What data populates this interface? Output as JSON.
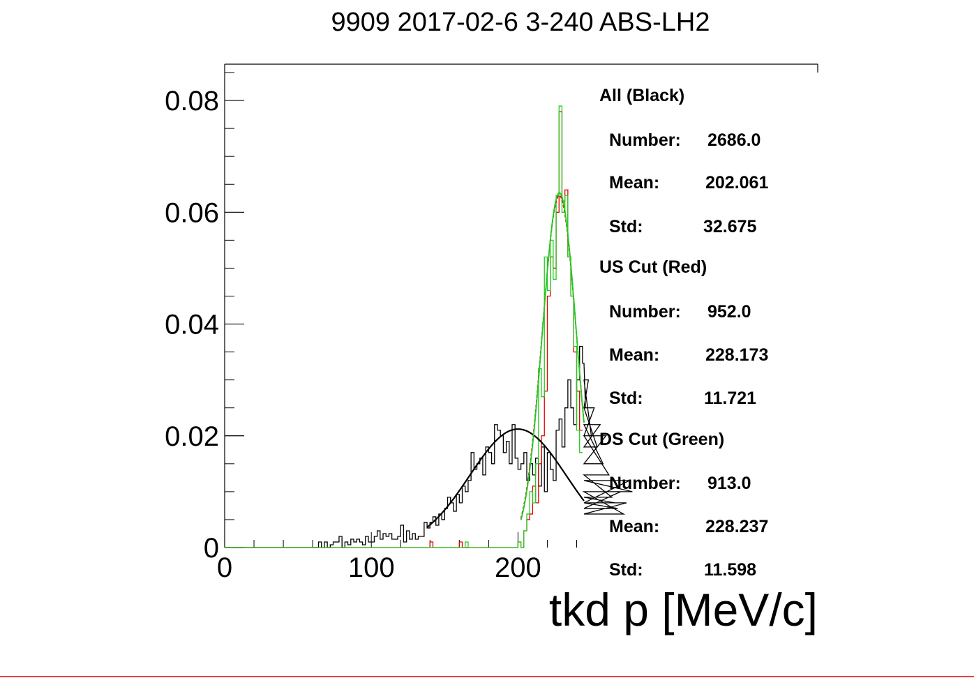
{
  "chart_data": {
    "type": "histogram",
    "title": "9909 2017-02-6 3-240 ABS-LH2",
    "xlabel": "tkd p [MeV/c]",
    "ylabel": "",
    "xlim": [
      0,
      245
    ],
    "ylim": [
      0,
      0.0865
    ],
    "x_ticks": [
      "0",
      "100",
      "200"
    ],
    "x_tick_values": [
      0,
      100,
      200
    ],
    "y_ticks": [
      "0",
      "0.02",
      "0.04",
      "0.06",
      "0.08"
    ],
    "y_tick_values": [
      0,
      0.02,
      0.04,
      0.06,
      0.08
    ],
    "bin_width": 2,
    "grid": false,
    "colors": {
      "all": "#000000",
      "us": "#e00000",
      "ds": "#22cc22",
      "frame": "#000000",
      "bottom_line": "#e00000"
    },
    "series": [
      {
        "key": "all",
        "x_start": 64,
        "values": [
          0.001,
          0,
          0.001,
          0,
          0.0005,
          0.001,
          0.001,
          0.002,
          0,
          0.001,
          0.0005,
          0.0015,
          0.001,
          0.0015,
          0.001,
          0.0005,
          0.002,
          0.001,
          0.001,
          0.002,
          0.003,
          0.0015,
          0.0025,
          0.002,
          0.0025,
          0.0015,
          0.0015,
          0.002,
          0.004,
          0.001,
          0.003,
          0.0015,
          0.0025,
          0.0015,
          0.002,
          0.002,
          0.0045,
          0.0035,
          0.0045,
          0.0055,
          0.004,
          0.006,
          0.005,
          0.007,
          0.009,
          0.008,
          0.0065,
          0.0095,
          0.008,
          0.011,
          0.01,
          0.012,
          0.017,
          0.014,
          0.015,
          0.016,
          0.013,
          0.018,
          0.017,
          0.015,
          0.022,
          0.021,
          0.02,
          0.017,
          0.019,
          0.015,
          0.022,
          0.016,
          0.014,
          0.015,
          0.017,
          0.012,
          0.015,
          0.013,
          0.016,
          0.011,
          0.018,
          0.01,
          0.017,
          0.014,
          0.012,
          0.021,
          0.023,
          0.018,
          0.025,
          0.03,
          0.025,
          0.022,
          0.03,
          0.036,
          0.033,
          0.025,
          0.03,
          0.02,
          0.025,
          0.018,
          0.022,
          0.015,
          0.02,
          0.013,
          0.009,
          0.008,
          0.007,
          0.01,
          0.006,
          0.008,
          0.012,
          0.01
        ]
      },
      {
        "key": "us",
        "x_start": 140,
        "values": [
          0.001,
          0,
          0,
          0,
          0,
          0,
          0,
          0,
          0,
          0,
          0.001,
          0,
          0,
          0,
          0,
          0,
          0,
          0,
          0,
          0,
          0,
          0,
          0,
          0,
          0,
          0,
          0,
          0,
          0,
          0,
          0.001,
          0,
          0.003,
          0.005,
          0.006,
          0.011,
          0.008,
          0.015,
          0.02,
          0.028,
          0.045,
          0.052,
          0.05,
          0.06,
          0.078,
          0.062,
          0.064,
          0.052,
          0.045,
          0.035,
          0.028,
          0.021
        ]
      },
      {
        "key": "ds",
        "x_start": 140,
        "values": [
          0,
          0,
          0,
          0,
          0,
          0,
          0,
          0,
          0,
          0,
          0,
          0,
          0.001,
          0,
          0,
          0,
          0,
          0,
          0,
          0,
          0,
          0,
          0,
          0,
          0,
          0,
          0,
          0,
          0,
          0,
          0.001,
          0,
          0.003,
          0.006,
          0.01,
          0.008,
          0.015,
          0.032,
          0.027,
          0.052,
          0.046,
          0.055,
          0.048,
          0.063,
          0.079,
          0.06,
          0.063,
          0.052,
          0.045,
          0.036,
          0.021,
          0.017
        ]
      }
    ],
    "fits": [
      {
        "key": "all",
        "mean": 200.0,
        "std": 33.0,
        "peak": 0.0212,
        "xmin": 138,
        "xmax": 245
      },
      {
        "key": "us",
        "mean": 228.173,
        "std": 11.721,
        "peak": 0.063,
        "xmin": 202,
        "xmax": 245
      },
      {
        "key": "ds",
        "mean": 228.237,
        "std": 11.598,
        "peak": 0.0635,
        "xmin": 202,
        "xmax": 245
      }
    ],
    "stats": [
      {
        "header": "All (Black)",
        "number_label": "Number:",
        "number": "2686.0",
        "mean_label": "Mean:",
        "mean": "202.061",
        "std_label": "Std:",
        "std": "32.675"
      },
      {
        "header": "US Cut (Red)",
        "number_label": "Number:",
        "number": "952.0",
        "mean_label": "Mean:",
        "mean": "228.173",
        "std_label": "Std:",
        "std": "11.721"
      },
      {
        "header": "DS Cut (Green)",
        "number_label": "Number:",
        "number": "913.0",
        "mean_label": "Mean:",
        "mean": "228.237",
        "std_label": "Std:",
        "std": "11.598"
      }
    ]
  }
}
